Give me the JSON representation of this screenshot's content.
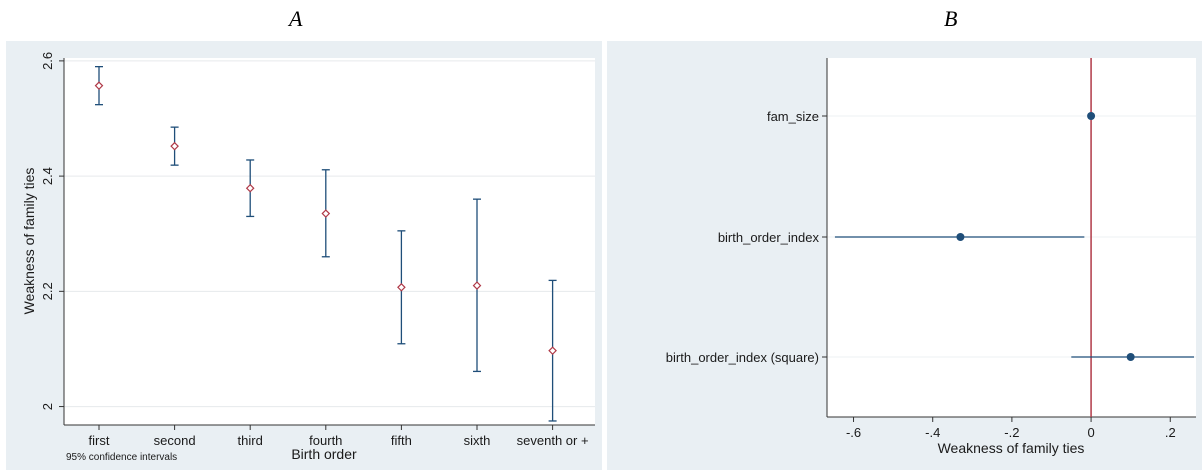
{
  "panels": {
    "left_letter": "A",
    "right_letter": "B"
  },
  "chart_data": [
    {
      "type": "scatter",
      "title": "",
      "xlabel": "Birth order",
      "ylabel": "Weakness of family ties",
      "categories": [
        "first",
        "second",
        "third",
        "fourth",
        "fifth",
        "sixth",
        "seventh or +"
      ],
      "series": [
        {
          "values": [
            2.557,
            2.452,
            2.379,
            2.335,
            2.207,
            2.21,
            2.097
          ],
          "ci_low": [
            2.524,
            2.419,
            2.33,
            2.26,
            2.109,
            2.061,
            1.975
          ],
          "ci_high": [
            2.59,
            2.485,
            2.428,
            2.411,
            2.305,
            2.36,
            2.219
          ]
        }
      ],
      "ylim": [
        1.968,
        2.605
      ],
      "yticks": [
        "2",
        "2.2",
        "2.4",
        "2.6"
      ],
      "grid": true,
      "note": "95% confidence intervals",
      "marker_color": "#b03a48",
      "bar_color": "#1f4e79",
      "plot_bg": "#e9eff3"
    },
    {
      "type": "scatter",
      "title": "",
      "xlabel": "Weakness of family ties",
      "ylabel": "",
      "categories": [
        "fam_size",
        "birth_order_index",
        "birth_order_index (square)"
      ],
      "series": [
        {
          "values": [
            0.0,
            -0.33,
            0.1
          ],
          "ci_low": [
            -0.003,
            -0.647,
            -0.05
          ],
          "ci_high": [
            0.003,
            -0.017,
            0.26
          ]
        }
      ],
      "xlim": [
        -0.667,
        0.265
      ],
      "xticks": [
        "-.6",
        "-.4",
        "-.2",
        "0",
        ".2"
      ],
      "reference_line": 0,
      "grid": true,
      "marker_color": "#1f4e79",
      "reference_color": "#b03a48",
      "plot_bg": "#ffffff",
      "outer_bg": "#e9eff3"
    }
  ]
}
